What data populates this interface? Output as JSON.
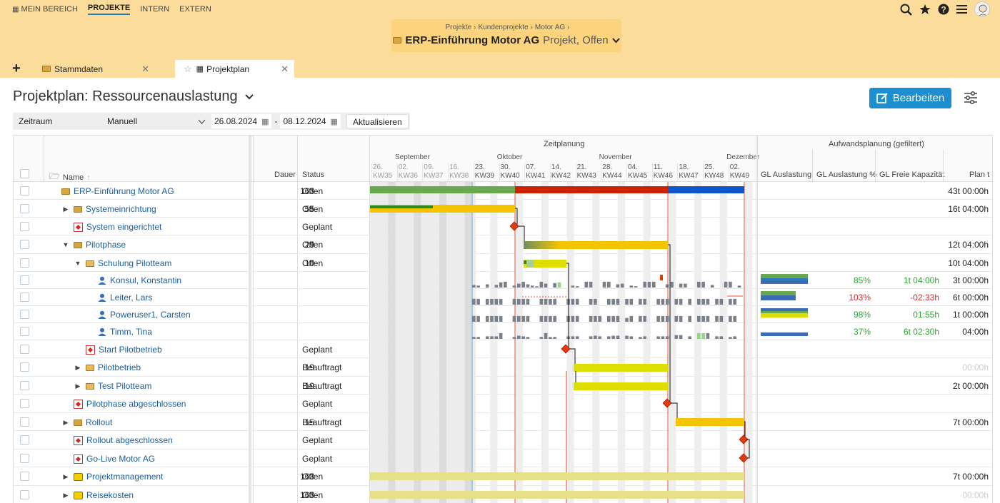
{
  "nav": {
    "items": [
      "MEIN BEREICH",
      "PROJEKTE",
      "INTERN",
      "EXTERN"
    ],
    "active_index": 1
  },
  "breadcrumb": {
    "items": [
      "Projekte",
      "Kundenprojekte",
      "Motor AG"
    ],
    "title": "ERP-Einführung Motor AG",
    "subtitle": "Projekt, Offen"
  },
  "tabs": [
    {
      "label": "Stammdaten"
    },
    {
      "label": "Projektplan"
    }
  ],
  "page": {
    "title": "Projektplan: Ressourcenauslastung",
    "edit_label": "Bearbeiten"
  },
  "filter": {
    "label": "Zeitraum",
    "mode": "Manuell",
    "from": "26.08.2024",
    "separator": "-",
    "to": "08.12.2024",
    "refresh": "Aktualisieren"
  },
  "columns": {
    "name": "Name",
    "dauer": "Dauer",
    "status": "Status",
    "zeitplanung": "Zeitplanung",
    "aufwand": "Aufwandsplanung (gefiltert)",
    "gl_auslastung": "GL Auslastung",
    "gl_auslastung_pct": "GL Auslastung %",
    "gl_freie": "GL Freie Kapazität",
    "plan": "Plan t"
  },
  "timeline": {
    "months": [
      {
        "label": "September",
        "col": 1
      },
      {
        "label": "Oktober",
        "col": 5
      },
      {
        "label": "November",
        "col": 9
      },
      {
        "label": "Dezember",
        "col": 14
      }
    ],
    "weeks": [
      {
        "day": "26.",
        "kw": "KW35"
      },
      {
        "day": "02.",
        "kw": "KW36"
      },
      {
        "day": "09.",
        "kw": "KW37"
      },
      {
        "day": "16.",
        "kw": "KW38"
      },
      {
        "day": "23.",
        "kw": "KW39"
      },
      {
        "day": "30.",
        "kw": "KW40"
      },
      {
        "day": "07.",
        "kw": "KW41"
      },
      {
        "day": "14.",
        "kw": "KW42"
      },
      {
        "day": "21.",
        "kw": "KW43"
      },
      {
        "day": "28.",
        "kw": "KW44"
      },
      {
        "day": "04.",
        "kw": "KW45"
      },
      {
        "day": "11.",
        "kw": "KW46"
      },
      {
        "day": "18.",
        "kw": "KW47"
      },
      {
        "day": "25.",
        "kw": "KW48"
      },
      {
        "day": "02.",
        "kw": "KW49"
      }
    ]
  },
  "rows": [
    {
      "name": "ERP-Einführung Motor AG",
      "icon": "folder-icon",
      "indent": 0,
      "expand": "",
      "dauer": "163",
      "status": "Offen",
      "plan": "43t 00:00h"
    },
    {
      "name": "Systemeinrichtung",
      "icon": "folder-icon",
      "indent": 1,
      "expand": "right",
      "dauer": "55",
      "status": "Offen",
      "plan": "16t 04:00h"
    },
    {
      "name": "System eingerichtet",
      "icon": "milestone-icon",
      "indent": 1,
      "expand": "",
      "dauer": "",
      "status": "Geplant",
      "plan": ""
    },
    {
      "name": "Pilotphase",
      "icon": "folder-icon",
      "indent": 1,
      "expand": "down",
      "dauer": "29",
      "status": "Offen",
      "plan": "12t 04:00h"
    },
    {
      "name": "Schulung Pilotteam",
      "icon": "subfolder-icon",
      "indent": 2,
      "expand": "down",
      "dauer": "10",
      "status": "Offen",
      "plan": "10t 04:00h"
    },
    {
      "name": "Konsul, Konstantin",
      "icon": "user-icon",
      "indent": 3,
      "expand": "",
      "dauer": "",
      "status": "",
      "plan": "3t 00:00h",
      "pct": "85%",
      "pct_color": "green",
      "free": "1t 04:00h",
      "free_color": "green",
      "load": 0.85
    },
    {
      "name": "Leiter, Lars",
      "icon": "user-icon",
      "indent": 3,
      "expand": "",
      "dauer": "",
      "status": "",
      "plan": "6t 00:00h",
      "pct": "103%",
      "pct_color": "red",
      "free": "-02:33h",
      "free_color": "red",
      "load": 1.03
    },
    {
      "name": "Poweruser1, Carsten",
      "icon": "user-icon",
      "indent": 3,
      "expand": "",
      "dauer": "",
      "status": "",
      "plan": "1t 00:00h",
      "pct": "98%",
      "pct_color": "green",
      "free": "01:55h",
      "free_color": "green",
      "load": 0.98
    },
    {
      "name": "Timm, Tina",
      "icon": "user-icon",
      "indent": 3,
      "expand": "",
      "dauer": "",
      "status": "",
      "plan": "04:00h",
      "pct": "37%",
      "pct_color": "green",
      "free": "6t 02:30h",
      "free_color": "green",
      "load": 0.37
    },
    {
      "name": "Start Pilotbetrieb",
      "icon": "milestone-icon",
      "indent": 2,
      "expand": "",
      "dauer": "",
      "status": "Geplant",
      "plan": ""
    },
    {
      "name": "Pilotbetrieb",
      "icon": "subfolder-icon",
      "indent": 2,
      "expand": "right",
      "dauer": "19",
      "status": "Beauftragt",
      "plan": "00:00h",
      "plan_grey": true
    },
    {
      "name": "Test Pilotteam",
      "icon": "subfolder-icon",
      "indent": 2,
      "expand": "right",
      "dauer": "19",
      "status": "Beauftragt",
      "plan": "2t 00:00h"
    },
    {
      "name": "Pilotphase abgeschlossen",
      "icon": "milestone-icon",
      "indent": 1,
      "expand": "",
      "dauer": "",
      "status": "Geplant",
      "plan": ""
    },
    {
      "name": "Rollout",
      "icon": "folder-icon",
      "indent": 1,
      "expand": "right",
      "dauer": "15",
      "status": "Beauftragt",
      "plan": "7t 00:00h"
    },
    {
      "name": "Rollout abgeschlossen",
      "icon": "milestone-icon",
      "indent": 1,
      "expand": "",
      "dauer": "",
      "status": "Geplant",
      "plan": ""
    },
    {
      "name": "Go-Live Motor AG",
      "icon": "milestone-icon",
      "indent": 1,
      "expand": "",
      "dauer": "",
      "status": "Geplant",
      "plan": ""
    },
    {
      "name": "Projektmanagement",
      "icon": "service-icon",
      "indent": 1,
      "expand": "right",
      "dauer": "163",
      "status": "Offen",
      "plan": "7t 00:00h"
    },
    {
      "name": "Reisekosten",
      "icon": "service-icon",
      "indent": 1,
      "expand": "right",
      "dauer": "163",
      "status": "Offen",
      "plan": "00:00h",
      "plan_grey": true
    }
  ],
  "colors": {
    "accent": "#1d8fd1",
    "header_bg": "#fbdc9a",
    "bar_green": "#6aa84f",
    "bar_red": "#cc2200",
    "bar_blue": "#1155cc",
    "bar_yellow": "#f5c400",
    "bar_lime": "#dede00",
    "milestone": "#e03a10",
    "ok_text": "#2ea535",
    "over_text": "#d72a2a"
  }
}
